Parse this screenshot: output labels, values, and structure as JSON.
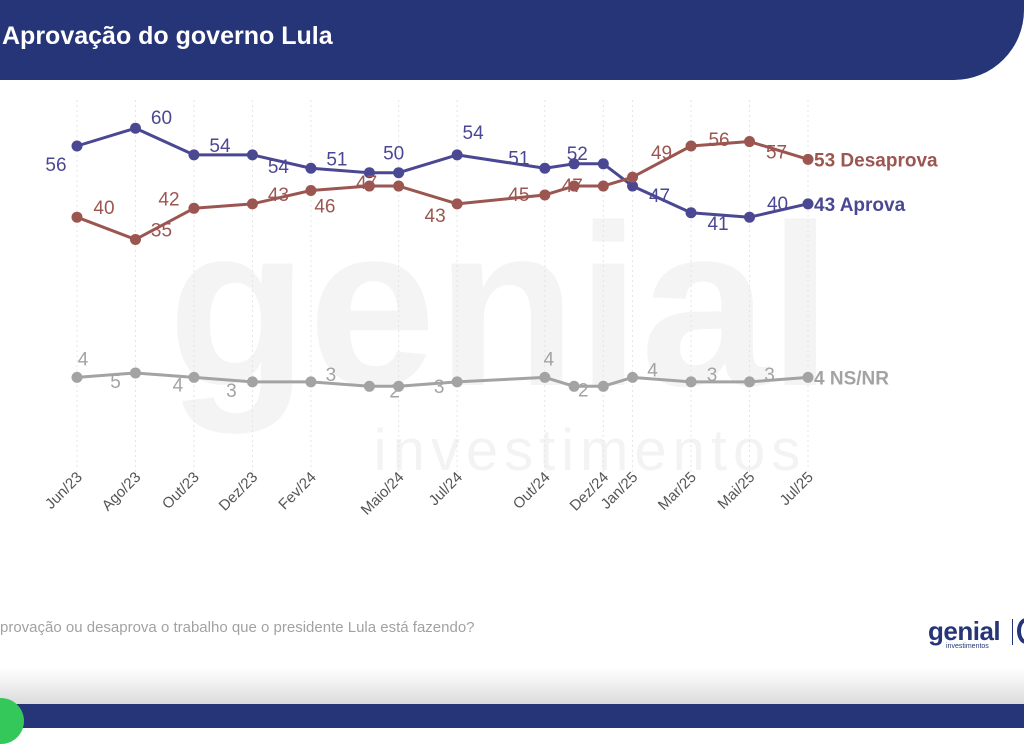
{
  "header": {
    "title": "Aprovação do governo Lula"
  },
  "question": "provação ou desaprova o trabalho que o presidente Lula está fazendo?",
  "logo": {
    "word": "genial",
    "sub": "investimentos"
  },
  "colors": {
    "header": "#263478",
    "aprova": "#4b4893",
    "desaprova": "#9c5651",
    "nsnr": "#a3a3a3"
  },
  "chart_data": {
    "type": "line",
    "categories": [
      "Jun/23",
      "Ago/23",
      "Out/23",
      "Dez/23",
      "Fev/24",
      "Maio/24",
      "Jul/24",
      "Out/24",
      "Dez/24",
      "Jan/25",
      "Mar/25",
      "Mai/25",
      "Jul/25"
    ],
    "x": [
      "2023-06",
      "2023-08",
      "2023-10",
      "2023-12",
      "2024-02",
      "2024-05",
      "2024-07",
      "2024-10",
      "2024-12",
      "2025-01",
      "2025-03",
      "2025-05",
      "2025-07"
    ],
    "extra_points": [
      {
        "after": "Fev/24",
        "x": "2024-04"
      },
      {
        "after": "Out/24",
        "x": "2024-11"
      }
    ],
    "series": [
      {
        "name": "Aprova",
        "end_label": "43 Aprova",
        "color": "#4b4893",
        "values": [
          56,
          60,
          54,
          54,
          51,
          50,
          54,
          51,
          52,
          47,
          41,
          40,
          43
        ],
        "extra_values": [
          50,
          52
        ]
      },
      {
        "name": "Desaprova",
        "end_label": "53 Desaprova",
        "color": "#9c5651",
        "values": [
          40,
          35,
          42,
          43,
          46,
          47,
          43,
          45,
          47,
          49,
          56,
          57,
          53
        ],
        "extra_values": [
          47,
          47
        ]
      },
      {
        "name": "NS/NR",
        "end_label": "4 NS/NR",
        "color": "#a3a3a3",
        "values": [
          4,
          5,
          4,
          3,
          3,
          2,
          3,
          4,
          2,
          4,
          3,
          3,
          4
        ],
        "extra_values": [
          2,
          2
        ]
      }
    ],
    "grid": "vertical-dashed",
    "legend": "end-labels"
  }
}
